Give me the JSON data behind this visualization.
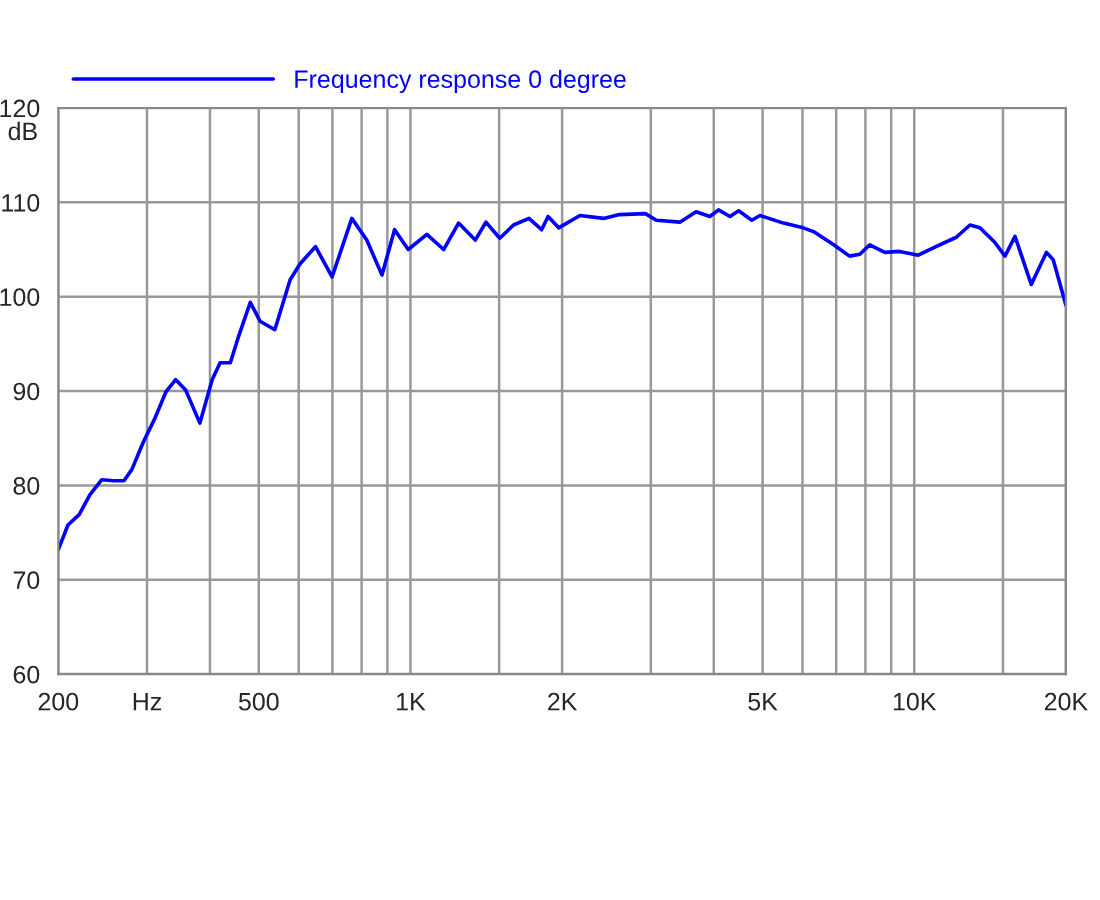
{
  "chart_data": {
    "type": "line",
    "ylabel": "dB",
    "log": "x",
    "grid": true,
    "legend": "top left",
    "marker": "none",
    "line_style": "solid",
    "xlim": [
      200,
      20000
    ],
    "ylim": [
      60,
      120
    ],
    "xticks": [
      200,
      {
        "value": 300,
        "label": "Hz"
      },
      {
        "value": 400,
        "label": null
      },
      500,
      {
        "value": 600,
        "label": null
      },
      {
        "value": 700,
        "label": null
      },
      {
        "value": 800,
        "label": null
      },
      {
        "value": 900,
        "label": null
      },
      {
        "value": 1000,
        "label": "1K"
      },
      {
        "value": 1500,
        "label": null
      },
      {
        "value": 2000,
        "label": "2K"
      },
      {
        "value": 3000,
        "label": null
      },
      {
        "value": 4000,
        "label": null
      },
      {
        "value": 5000,
        "label": "5K"
      },
      {
        "value": 6000,
        "label": null
      },
      {
        "value": 7000,
        "label": null
      },
      {
        "value": 8000,
        "label": null
      },
      {
        "value": 9000,
        "label": null
      },
      {
        "value": 10000,
        "label": "10K"
      },
      {
        "value": 15000,
        "label": null
      },
      {
        "value": 20000,
        "label": "20K"
      }
    ],
    "yticks": [
      60,
      70,
      80,
      90,
      100,
      110,
      120
    ],
    "series": [
      {
        "name": "Frequency response 0 degree",
        "color": "#0000ff",
        "x": [
          200,
          209,
          220,
          231,
          244,
          258,
          270,
          280,
          295,
          311,
          327,
          342,
          358,
          382,
          404,
          419,
          439,
          456,
          481,
          503,
          538,
          577,
          604,
          648,
          699,
          765,
          819,
          878,
          930,
          990,
          1078,
          1164,
          1246,
          1345,
          1412,
          1504,
          1602,
          1719,
          1821,
          1876,
          1969,
          2170,
          2418,
          2600,
          2926,
          3077,
          3426,
          3690,
          3928,
          4088,
          4308,
          4482,
          4760,
          4940,
          5500,
          6020,
          6310,
          6920,
          7440,
          7800,
          8160,
          8740,
          9350,
          10180,
          11040,
          12120,
          12900,
          13500,
          14430,
          15140,
          15850,
          17070,
          18300,
          18880,
          20000
        ],
        "values": [
          73.2,
          75.8,
          76.9,
          79.0,
          80.6,
          80.5,
          80.5,
          81.7,
          84.6,
          87.1,
          89.9,
          91.2,
          90.1,
          86.6,
          91.2,
          93.0,
          93.0,
          95.8,
          99.4,
          97.4,
          96.5,
          101.8,
          103.5,
          105.3,
          102.1,
          108.3,
          106.0,
          102.3,
          107.1,
          105.0,
          106.6,
          105.0,
          107.8,
          106.0,
          107.9,
          106.2,
          107.6,
          108.3,
          107.1,
          108.5,
          107.3,
          108.6,
          108.3,
          108.7,
          108.8,
          108.1,
          107.9,
          109.0,
          108.5,
          109.2,
          108.5,
          109.1,
          108.1,
          108.6,
          107.8,
          107.3,
          106.9,
          105.5,
          104.3,
          104.5,
          105.5,
          104.7,
          104.8,
          104.4,
          105.3,
          106.3,
          107.6,
          107.3,
          105.8,
          104.3,
          106.4,
          101.3,
          104.7,
          103.9,
          99.1
        ]
      }
    ]
  }
}
